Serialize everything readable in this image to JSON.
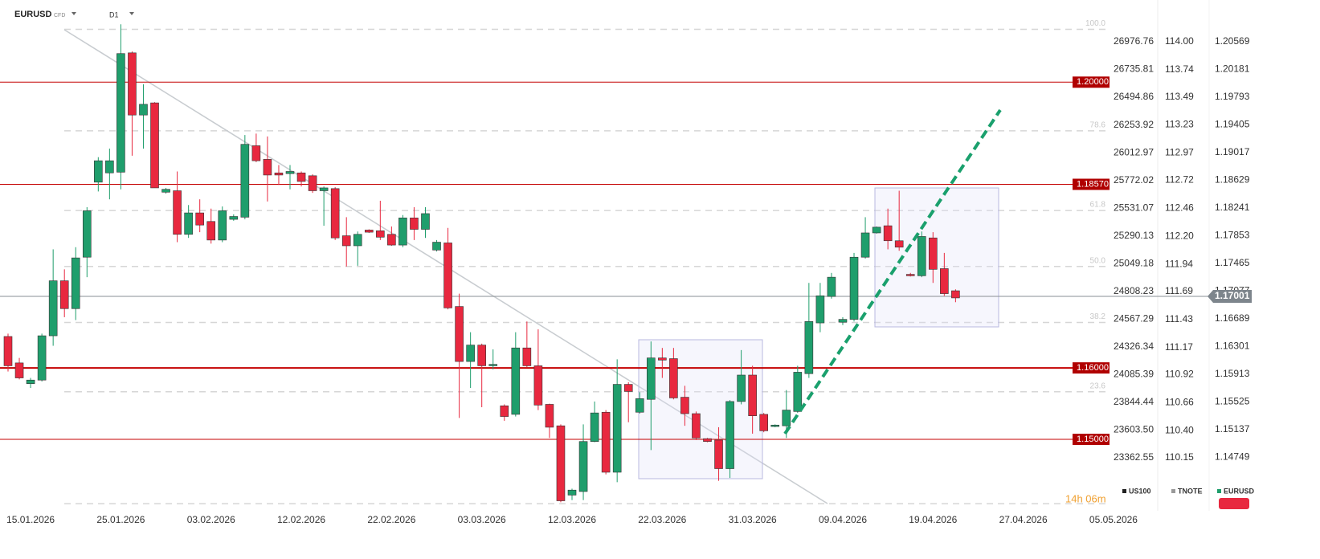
{
  "chart_data": {
    "type": "candlestick",
    "symbol": "EURUSD",
    "instrument_type": "CFD",
    "timeframe": "D1",
    "up_color": "#1f9e6c",
    "down_color": "#e8283f",
    "open": [
      1.1644,
      1.1607,
      1.1578,
      1.1583,
      1.1645,
      1.1722,
      1.1683,
      1.1755,
      1.186,
      1.1873,
      1.1874,
      1.2041,
      1.1954,
      1.1971,
      1.1846,
      1.1848,
      1.1787,
      1.1817,
      1.1805,
      1.1779,
      1.1808,
      1.1811,
      1.1911,
      1.1892,
      1.1873,
      1.1872,
      1.1873,
      1.1869,
      1.1848,
      1.1851,
      1.1785,
      1.1771,
      1.1793,
      1.1792,
      1.1787,
      1.1772,
      1.181,
      1.1794,
      1.1765,
      1.1775,
      1.1686,
      1.1609,
      1.1632,
      1.1603,
      1.1547,
      1.1535,
      1.1628,
      1.1603,
      1.1549,
      1.1519,
      1.1422,
      1.1427,
      1.1497,
      1.1538,
      1.1454,
      1.1577,
      1.1538,
      1.1556,
      1.1614,
      1.1613,
      1.1559,
      1.1536,
      1.1501,
      1.1499,
      1.1459,
      1.1553,
      1.159,
      1.1535,
      1.1518,
      1.1519,
      1.1539,
      1.1592,
      1.1663,
      1.17,
      1.1664,
      1.1668,
      1.1755,
      1.1789,
      1.1799,
      1.1778,
      1.1731,
      1.1729,
      1.1782,
      1.1739,
      1.1708
    ],
    "high": [
      1.1648,
      1.1614,
      1.1586,
      1.1648,
      1.1766,
      1.1738,
      1.1769,
      1.1825,
      1.1895,
      1.1907,
      1.2081,
      1.2043,
      1.1997,
      1.1972,
      1.1852,
      1.1875,
      1.1828,
      1.1836,
      1.1823,
      1.1826,
      1.1815,
      1.1926,
      1.1928,
      1.1924,
      1.1884,
      1.1884,
      1.1875,
      1.1871,
      1.1854,
      1.1853,
      1.1811,
      1.1791,
      1.1794,
      1.1834,
      1.1798,
      1.1814,
      1.1825,
      1.1825,
      1.1779,
      1.1796,
      1.1704,
      1.165,
      1.1634,
      1.1626,
      1.1549,
      1.165,
      1.1665,
      1.1654,
      1.155,
      1.1521,
      1.1431,
      1.1521,
      1.1553,
      1.1541,
      1.1612,
      1.158,
      1.1566,
      1.1637,
      1.1628,
      1.1628,
      1.1575,
      1.1539,
      1.1502,
      1.1517,
      1.1555,
      1.1625,
      1.1603,
      1.1537,
      1.1521,
      1.1569,
      1.1603,
      1.1719,
      1.1719,
      1.1733,
      1.1671,
      1.1761,
      1.1811,
      1.1798,
      1.1823,
      1.1848,
      1.1733,
      1.1791,
      1.179,
      1.1761,
      1.171
    ],
    "low": [
      1.1595,
      1.1584,
      1.1572,
      1.1581,
      1.1631,
      1.1671,
      1.1667,
      1.1727,
      1.1847,
      1.1836,
      1.185,
      1.1897,
      1.1907,
      1.1852,
      1.1844,
      1.1776,
      1.1782,
      1.179,
      1.1774,
      1.1776,
      1.1806,
      1.1808,
      1.1888,
      1.1833,
      1.1856,
      1.185,
      1.1854,
      1.1845,
      1.1799,
      1.1779,
      1.1742,
      1.1743,
      1.1789,
      1.1779,
      1.1771,
      1.1769,
      1.1779,
      1.1782,
      1.1763,
      1.1682,
      1.153,
      1.1572,
      1.1545,
      1.1598,
      1.1526,
      1.1532,
      1.1601,
      1.1541,
      1.1502,
      1.1412,
      1.1415,
      1.1415,
      1.1496,
      1.1451,
      1.144,
      1.1524,
      1.1536,
      1.1485,
      1.1586,
      1.1556,
      1.1519,
      1.1499,
      1.1496,
      1.1442,
      1.1446,
      1.1549,
      1.1508,
      1.151,
      1.1517,
      1.1502,
      1.1537,
      1.1586,
      1.165,
      1.1697,
      1.166,
      1.1665,
      1.1753,
      1.1788,
      1.1766,
      1.1764,
      1.1728,
      1.1727,
      1.1719,
      1.1701,
      1.1692
    ],
    "close": [
      1.1603,
      1.1586,
      1.1583,
      1.1645,
      1.1722,
      1.1683,
      1.1754,
      1.182,
      1.189,
      1.189,
      1.204,
      1.1954,
      1.1969,
      1.1852,
      1.185,
      1.1787,
      1.1817,
      1.18,
      1.1779,
      1.182,
      1.1812,
      1.1913,
      1.189,
      1.187,
      1.187,
      1.1875,
      1.1861,
      1.1848,
      1.1852,
      1.1782,
      1.1771,
      1.1787,
      1.179,
      1.1783,
      1.1772,
      1.181,
      1.1794,
      1.1816,
      1.1776,
      1.1684,
      1.1609,
      1.1632,
      1.1603,
      1.1605,
      1.1532,
      1.1628,
      1.1603,
      1.1548,
      1.1517,
      1.1414,
      1.1429,
      1.1497,
      1.1537,
      1.1454,
      1.1577,
      1.1567,
      1.1557,
      1.1614,
      1.1611,
      1.1558,
      1.1536,
      1.1502,
      1.1497,
      1.1459,
      1.1553,
      1.159,
      1.1533,
      1.1512,
      1.152,
      1.1541,
      1.1594,
      1.1665,
      1.1701,
      1.1727,
      1.1668,
      1.1755,
      1.1789,
      1.1797,
      1.1778,
      1.1769,
      1.1729,
      1.1784,
      1.1738,
      1.1704,
      1.1698
    ],
    "xlim": [
      -0.712,
      101.85
    ],
    "xticks": [
      {
        "value": 2,
        "label": "15.01.2026"
      },
      {
        "value": 10,
        "label": "25.01.2026"
      },
      {
        "value": 18,
        "label": "03.02.2026"
      },
      {
        "value": 26,
        "label": "12.02.2026"
      },
      {
        "value": 34,
        "label": "22.02.2026"
      },
      {
        "value": 42,
        "label": "03.03.2026"
      },
      {
        "value": 50,
        "label": "12.03.2026"
      },
      {
        "value": 58,
        "label": "22.03.2026"
      },
      {
        "value": 66,
        "label": "31.03.2026"
      },
      {
        "value": 74,
        "label": "09.04.2026"
      },
      {
        "value": 82,
        "label": "19.04.2026"
      },
      {
        "value": 90,
        "label": "27.04.2026"
      },
      {
        "value": 98,
        "label": "05.05.2026"
      }
    ],
    "ylim": [
      1.14,
      1.2115
    ],
    "scales": [
      {
        "name": "US100",
        "color": "#222222",
        "ylim": [
          22902.0,
          27339.6
        ],
        "yticks": [
          26976.76,
          26735.81,
          26494.86,
          26253.92,
          26012.97,
          25772.02,
          25531.07,
          25290.13,
          25049.18,
          24808.23,
          24567.29,
          24326.34,
          24085.39,
          23844.44,
          {
            "value": 23603.5,
            "label": "23603.50"
          },
          23362.55
        ]
      },
      {
        "name": "TNOTE",
        "color": "#999999",
        "ylim": [
          109.66,
          114.386
        ],
        "yticks": [
          {
            "value": 114,
            "label": "114.00"
          },
          113.74,
          113.49,
          113.23,
          112.97,
          112.72,
          112.46,
          {
            "value": 112.2,
            "label": "112.20"
          },
          111.94,
          111.69,
          111.43,
          111.17,
          110.92,
          110.66,
          {
            "value": 110.4,
            "label": "110.40"
          },
          110.15
        ]
      },
      {
        "name": "EURUSD",
        "color": "#1f9e6c",
        "ylim": [
          1.14,
          1.2115
        ],
        "yticks": [
          1.20569,
          1.20181,
          1.19793,
          1.19405,
          1.19017,
          1.18629,
          1.18241,
          1.17853,
          1.17465,
          1.17077,
          1.16689,
          1.16301,
          1.15913,
          1.15525,
          1.15137,
          1.14749
        ]
      }
    ],
    "levels": [
      {
        "value": 1.2,
        "label": "1.20000"
      },
      {
        "value": 1.1857,
        "label": "1.18570"
      },
      {
        "value": 1.16,
        "label": "1.16000"
      },
      {
        "value": 1.15,
        "label": "1.15000"
      }
    ],
    "current_price": {
      "value": 1.17001,
      "label": "1.17001"
    },
    "fibonacci": {
      "high": 1.2074,
      "low": 1.141,
      "levels": [
        {
          "value": 100,
          "label": "100.0"
        },
        78.6,
        61.8,
        {
          "value": 50,
          "label": "50.0"
        },
        38.2,
        23.6,
        {
          "value": 0,
          "label": null
        }
      ]
    },
    "countdown": "14h 06m"
  }
}
